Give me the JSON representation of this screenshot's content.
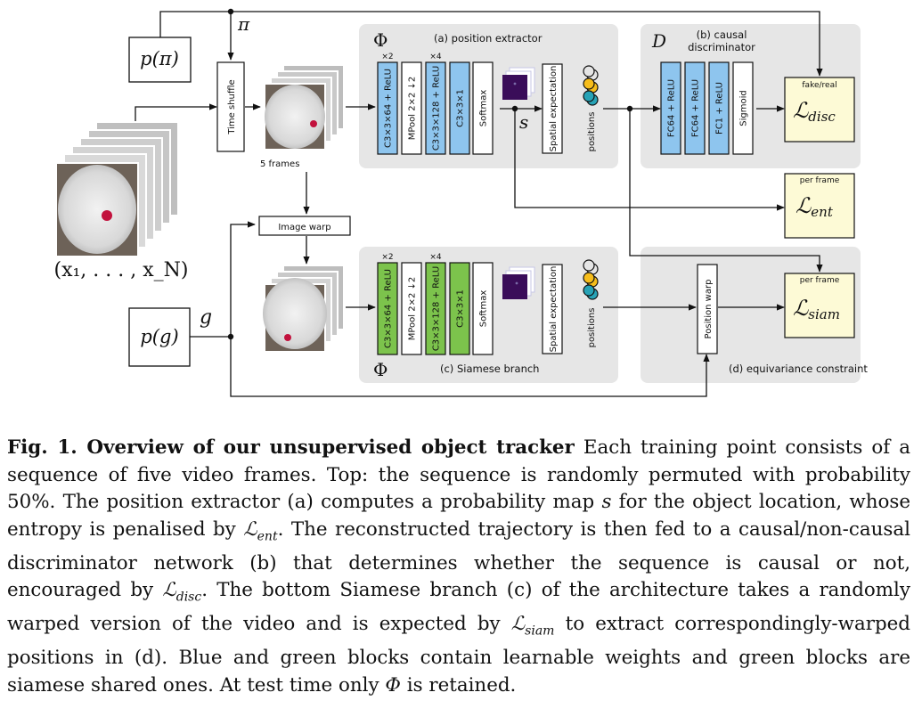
{
  "colors": {
    "panel": "#e6e6e6",
    "blue_layer": "#8ec5ee",
    "green_layer": "#7cc34c",
    "loss_box": "#fdfad6",
    "prob_map": "#3a0d59",
    "ball_gray": "#e5e5e5",
    "ball_yellow": "#f6bd1b",
    "ball_teal": "#27a3b6"
  },
  "diagram": {
    "inputs": {
      "perm_prior": "p(π)",
      "perm_var": "π",
      "warp_prior": "p(g)",
      "warp_var": "g",
      "frames_label": "(x₁, . . . , x_N)",
      "time_shuffle": "Time shuffle",
      "five_frames": "5 frames",
      "image_warp": "Image warp"
    },
    "position_extractor": {
      "symbol": "Φ",
      "title": "(a) position extractor",
      "layers": [
        {
          "label": "C3×3×64 + ReLU",
          "repeat": "×2",
          "kind": "learnable"
        },
        {
          "label": "MPool 2×2 ↓2",
          "repeat": "",
          "kind": "fixed"
        },
        {
          "label": "C3×3×128 + ReLU",
          "repeat": "×4",
          "kind": "learnable"
        },
        {
          "label": "C3×3×1",
          "repeat": "",
          "kind": "learnable"
        },
        {
          "label": "Softmax",
          "repeat": "",
          "kind": "fixed"
        }
      ],
      "map_var": "s",
      "spatial_expectation": "Spatial expectation",
      "positions": "positions"
    },
    "discriminator": {
      "symbol": "D",
      "title_line1": "(b) causal",
      "title_line2": "discriminator",
      "layers": [
        {
          "label": "FC64 + ReLU",
          "kind": "learnable"
        },
        {
          "label": "FC64 + ReLU",
          "kind": "learnable"
        },
        {
          "label": "FC1 + ReLU",
          "kind": "learnable"
        },
        {
          "label": "Sigmoid",
          "kind": "fixed"
        }
      ]
    },
    "siamese": {
      "symbol": "Φ",
      "title": "(c) Siamese branch",
      "layers": [
        {
          "label": "C3×3×64 + ReLU",
          "repeat": "×2",
          "kind": "shared"
        },
        {
          "label": "MPool 2×2 ↓2",
          "repeat": "",
          "kind": "fixed"
        },
        {
          "label": "C3×3×128 + ReLU",
          "repeat": "×4",
          "kind": "shared"
        },
        {
          "label": "C3×3×1",
          "repeat": "",
          "kind": "shared"
        },
        {
          "label": "Softmax",
          "repeat": "",
          "kind": "fixed"
        }
      ],
      "spatial_expectation": "Spatial expectation",
      "positions": "positions"
    },
    "equivariance": {
      "title": "(d) equivariance constraint",
      "position_warp": "Position warp"
    },
    "losses": {
      "disc": {
        "note": "fake/real",
        "symbol": "ℒ",
        "sub": "disc"
      },
      "ent": {
        "note": "per frame",
        "symbol": "ℒ",
        "sub": "ent"
      },
      "siam": {
        "note": "per frame",
        "symbol": "ℒ",
        "sub": "siam"
      }
    }
  },
  "caption": {
    "lead": "Fig. 1. Overview of our unsupervised object tracker",
    "p1": " Each training point consists of a sequence of five video frames. Top: the sequence is randomly permuted with probability 50%. The position extractor (a) computes a probability map ",
    "s": "s",
    "p2": " for the object location, whose entropy is penalised by ",
    "l_ent": "ℒ",
    "l_ent_sub": "ent",
    "p3": ". The reconstructed trajectory is then fed to a causal/non-causal discriminator network (b) that determines whether the sequence is causal or not, encouraged by ",
    "l_disc": "ℒ",
    "l_disc_sub": "disc",
    "p4": ". The bottom Siamese branch (c) of the architecture takes a randomly warped version of the video and is expected by ",
    "l_siam": "ℒ",
    "l_siam_sub": "siam",
    "p5": " to extract correspondingly-warped positions in (d). Blue and green blocks contain learnable weights and green blocks are siamese shared ones. At test time only ",
    "phi": "Φ",
    "p6": " is retained."
  }
}
